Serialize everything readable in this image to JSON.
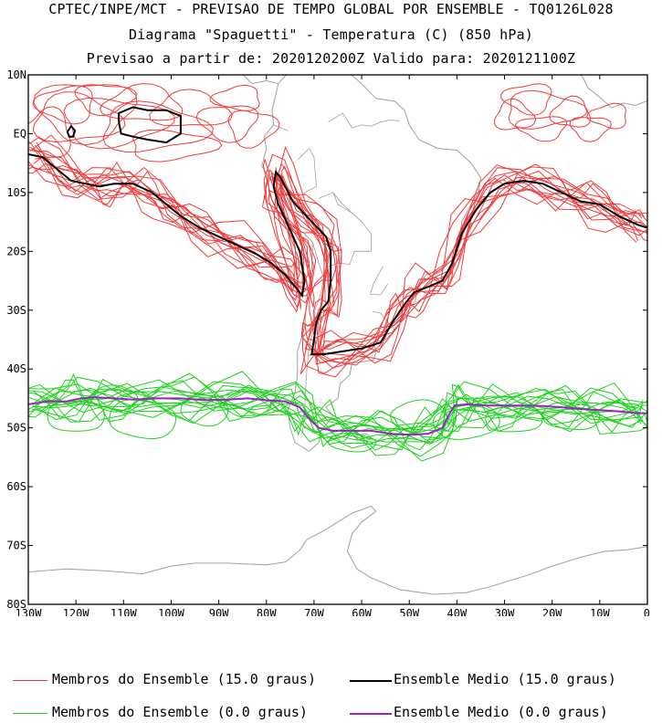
{
  "header": {
    "line1": "CPTEC/INPE/MCT - PREVISAO DE TEMPO GLOBAL POR ENSEMBLE - TQ0126L028",
    "line2": "Diagrama \"Spaguetti\" - Temperatura (C) (850 hPa)",
    "line3": "Previsao a partir de: 2020120200Z  Valido para: 2020121100Z"
  },
  "axes": {
    "lat_labels": [
      "10N",
      "EQ",
      "10S",
      "20S",
      "30S",
      "40S",
      "50S",
      "60S",
      "70S",
      "80S"
    ],
    "lon_labels": [
      "130W",
      "120W",
      "110W",
      "100W",
      "90W",
      "80W",
      "70W",
      "60W",
      "50W",
      "40W",
      "30W",
      "20W",
      "10W",
      "0"
    ]
  },
  "legend": {
    "members_15": "Membros do Ensemble (15.0 graus)",
    "mean_15": "Ensemble Medio (15.0 graus)",
    "members_0": "Membros do Ensemble (0.0 graus)",
    "mean_0": "Ensemble Medio (0.0 graus)"
  },
  "colors": {
    "members_15": "#f03c3c",
    "mean_15": "#000000",
    "members_0": "#1ed21e",
    "mean_0": "#a020c8",
    "coast": "#a0a0a0"
  },
  "map": {
    "lon_range": [
      -130,
      0
    ],
    "lat_range": [
      -80,
      10
    ],
    "mean_15_path": [
      [
        -130,
        -3.5
      ],
      [
        -127,
        -4
      ],
      [
        -124,
        -6
      ],
      [
        -121,
        -8
      ],
      [
        -118,
        -8.5
      ],
      [
        -115,
        -9
      ],
      [
        -112,
        -8.5
      ],
      [
        -108,
        -8.5
      ],
      [
        -104,
        -10
      ],
      [
        -101,
        -12
      ],
      [
        -98,
        -14
      ],
      [
        -94,
        -16
      ],
      [
        -90,
        -17.5
      ],
      [
        -86,
        -19
      ],
      [
        -82,
        -20.5
      ],
      [
        -79,
        -22
      ],
      [
        -76,
        -24
      ],
      [
        -74,
        -26
      ],
      [
        -72.5,
        -27.5
      ],
      [
        -72,
        -25
      ],
      [
        -73,
        -20
      ],
      [
        -75.5,
        -15.5
      ],
      [
        -77.5,
        -12
      ],
      [
        -78.5,
        -9
      ],
      [
        -78,
        -6.5
      ],
      [
        -77,
        -7.5
      ],
      [
        -74.5,
        -11.5
      ],
      [
        -71,
        -14.5
      ],
      [
        -67.5,
        -17.5
      ],
      [
        -66.5,
        -20
      ],
      [
        -66.5,
        -25
      ],
      [
        -67,
        -28.5
      ],
      [
        -68.5,
        -30
      ],
      [
        -69.5,
        -32
      ],
      [
        -70,
        -35
      ],
      [
        -70.5,
        -37.5
      ],
      [
        -68,
        -37.5
      ],
      [
        -64,
        -37
      ],
      [
        -60,
        -36.5
      ],
      [
        -56,
        -35.5
      ],
      [
        -53.5,
        -32
      ],
      [
        -51,
        -29
      ],
      [
        -49,
        -27
      ],
      [
        -46,
        -26
      ],
      [
        -43,
        -25
      ],
      [
        -41,
        -22
      ],
      [
        -39,
        -17
      ],
      [
        -36,
        -13
      ],
      [
        -33,
        -10
      ],
      [
        -30,
        -8.5
      ],
      [
        -26,
        -8
      ],
      [
        -22,
        -8.5
      ],
      [
        -18,
        -10
      ],
      [
        -14,
        -11.5
      ],
      [
        -10,
        -12
      ],
      [
        -6,
        -14
      ],
      [
        -2,
        -15.5
      ],
      [
        0,
        -16
      ]
    ],
    "blob_15": [
      [
        -111,
        3.5
      ],
      [
        -108,
        4.5
      ],
      [
        -105,
        4
      ],
      [
        -101,
        4
      ],
      [
        -98,
        3
      ],
      [
        -98,
        0
      ],
      [
        -101,
        -1.5
      ],
      [
        -105,
        -1
      ],
      [
        -108,
        -0.5
      ],
      [
        -110.5,
        0
      ],
      [
        -111,
        2
      ]
    ],
    "small_15": [
      [
        -121,
        1.3
      ],
      [
        -120.2,
        0.5
      ],
      [
        -120.6,
        -0.5
      ],
      [
        -121.4,
        -0.5
      ],
      [
        -121.8,
        0.3
      ]
    ],
    "mean_0_path": [
      [
        -130,
        -46
      ],
      [
        -126,
        -45.5
      ],
      [
        -122,
        -45.5
      ],
      [
        -119,
        -45
      ],
      [
        -116,
        -44.8
      ],
      [
        -112,
        -45
      ],
      [
        -108,
        -45.2
      ],
      [
        -103,
        -45
      ],
      [
        -98,
        -45
      ],
      [
        -93,
        -45.3
      ],
      [
        -88,
        -45.2
      ],
      [
        -84,
        -45
      ],
      [
        -80,
        -45.3
      ],
      [
        -76,
        -45.5
      ],
      [
        -73,
        -46.5
      ],
      [
        -71,
        -48.5
      ],
      [
        -69,
        -50
      ],
      [
        -66,
        -50.5
      ],
      [
        -62,
        -50.5
      ],
      [
        -58,
        -50.5
      ],
      [
        -54,
        -51
      ],
      [
        -50,
        -51.2
      ],
      [
        -46,
        -51
      ],
      [
        -43,
        -50
      ],
      [
        -41.5,
        -47.5
      ],
      [
        -40.5,
        -46.2
      ],
      [
        -38,
        -46
      ],
      [
        -34,
        -46.2
      ],
      [
        -30,
        -46.2
      ],
      [
        -26,
        -46.2
      ],
      [
        -22,
        -46.3
      ],
      [
        -18,
        -46.5
      ],
      [
        -14,
        -46.8
      ],
      [
        -10,
        -47
      ],
      [
        -6,
        -47.2
      ],
      [
        -2,
        -47.5
      ],
      [
        0,
        -47.5
      ]
    ]
  }
}
